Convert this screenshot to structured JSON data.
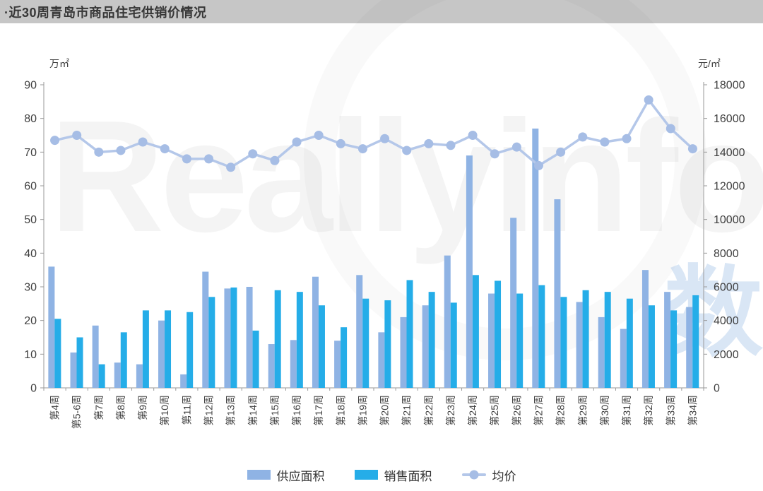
{
  "header": {
    "title": "·近30周青岛市商品住宅供销价情况"
  },
  "watermark": {
    "text_en": "Reallyinfo",
    "text_cn": "数据"
  },
  "colors": {
    "supply_bar": "#8fb3e4",
    "sales_bar": "#25ade8",
    "price_line": "#b4c7e9",
    "price_marker": "#a6bde5",
    "axis_line": "#9a9a9a",
    "axis_text": "#3f3f3f",
    "header_bg": "#c6c6c6"
  },
  "chart_data": {
    "type": "bar",
    "title": "近30周青岛市商品住宅供销价情况",
    "grid": false,
    "legend_position": "bottom",
    "left_axis": {
      "unit": "万㎡",
      "min": 0,
      "max": 90,
      "step": 10
    },
    "right_axis": {
      "unit": "元/㎡",
      "min": 0,
      "max": 18000,
      "step": 2000
    },
    "categories": [
      "第4周",
      "第5-6周",
      "第7周",
      "第8周",
      "第9周",
      "第10周",
      "第11周",
      "第12周",
      "第13周",
      "第14周",
      "第15周",
      "第16周",
      "第17周",
      "第18周",
      "第19周",
      "第20周",
      "第21周",
      "第22周",
      "第23周",
      "第24周",
      "第25周",
      "第26周",
      "第27周",
      "第28周",
      "第29周",
      "第30周",
      "第31周",
      "第32周",
      "第33周",
      "第34周"
    ],
    "series": [
      {
        "name": "供应面积",
        "type": "bar",
        "axis": "left",
        "values": [
          36,
          10.5,
          18.5,
          7.5,
          7,
          20,
          4,
          34.5,
          29.5,
          30,
          13,
          14.2,
          33,
          14,
          33.5,
          16.5,
          21,
          24.5,
          39.3,
          69,
          28,
          50.5,
          77,
          56,
          25.5,
          21,
          17.5,
          35,
          28.5,
          24
        ]
      },
      {
        "name": "销售面积",
        "type": "bar",
        "axis": "left",
        "values": [
          20.5,
          15,
          7,
          16.5,
          23,
          23,
          22.5,
          27,
          29.8,
          17,
          29,
          28.5,
          24.5,
          18,
          26.5,
          26,
          32,
          28.5,
          25.3,
          33.5,
          31.8,
          28,
          30.5,
          27,
          29,
          28.5,
          26.5,
          24.5,
          23,
          27.5
        ]
      },
      {
        "name": "均价",
        "type": "line",
        "axis": "right",
        "values": [
          14700,
          15000,
          14000,
          14100,
          14600,
          14200,
          13600,
          13600,
          13100,
          13900,
          13500,
          14600,
          15000,
          14500,
          14200,
          14800,
          14100,
          14500,
          14400,
          15000,
          13900,
          14300,
          13200,
          14000,
          14900,
          14600,
          14800,
          17100,
          15400,
          14200
        ]
      }
    ]
  }
}
